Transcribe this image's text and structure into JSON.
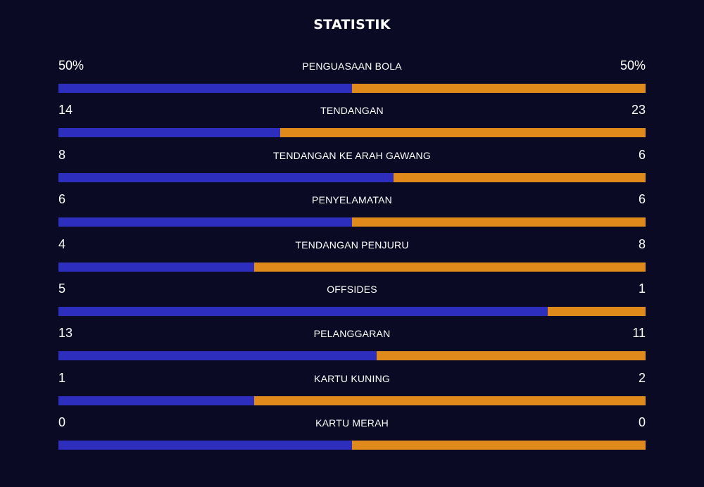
{
  "title": "STATISTIK",
  "colors": {
    "background": "#0a0a24",
    "home": "#2e2ebe",
    "away": "#e08a1c"
  },
  "stats": [
    {
      "name": "PENGUASAAN BOLA",
      "home": "50%",
      "away": "50%",
      "home_share": 0.5
    },
    {
      "name": "TENDANGAN",
      "home": "14",
      "away": "23",
      "home_share": 0.378
    },
    {
      "name": "TENDANGAN KE ARAH GAWANG",
      "home": "8",
      "away": "6",
      "home_share": 0.571
    },
    {
      "name": "PENYELAMATAN",
      "home": "6",
      "away": "6",
      "home_share": 0.5
    },
    {
      "name": "TENDANGAN PENJURU",
      "home": "4",
      "away": "8",
      "home_share": 0.333
    },
    {
      "name": "OFFSIDES",
      "home": "5",
      "away": "1",
      "home_share": 0.833
    },
    {
      "name": "PELANGGARAN",
      "home": "13",
      "away": "11",
      "home_share": 0.542
    },
    {
      "name": "KARTU KUNING",
      "home": "1",
      "away": "2",
      "home_share": 0.333
    },
    {
      "name": "KARTU MERAH",
      "home": "0",
      "away": "0",
      "home_share": 0.5
    }
  ]
}
